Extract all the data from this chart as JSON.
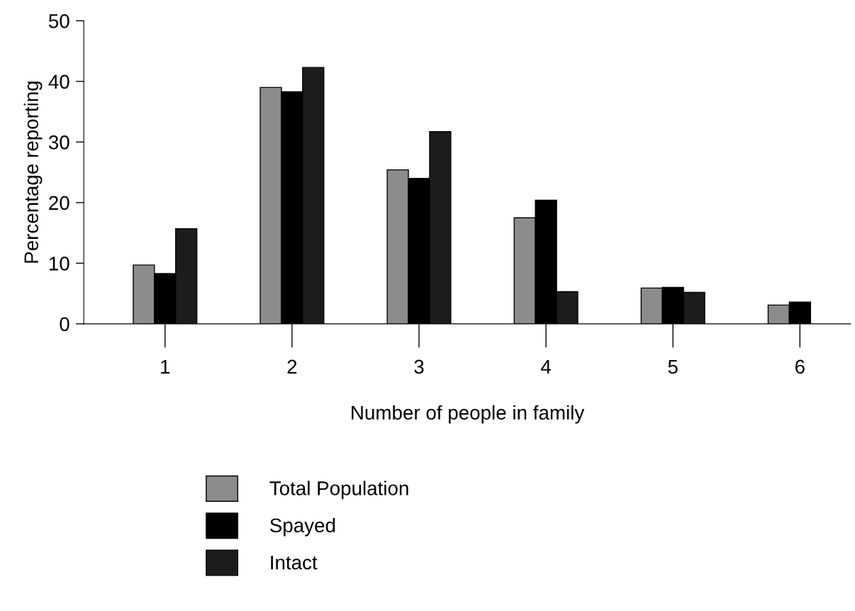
{
  "chart_data": {
    "type": "bar",
    "xlabel": "Number of people in family",
    "ylabel": "Percentage reporting",
    "categories": [
      "1",
      "2",
      "3",
      "4",
      "5",
      "6"
    ],
    "series": [
      {
        "name": "Total Population",
        "color": "#8c8c8c",
        "values": [
          9.7,
          39.0,
          25.4,
          17.5,
          5.9,
          3.1
        ]
      },
      {
        "name": "Spayed",
        "color": "#000000",
        "values": [
          8.3,
          38.3,
          24.0,
          20.4,
          6.0,
          3.6
        ]
      },
      {
        "name": "Intact",
        "color": "#1c1c1c",
        "values": [
          15.7,
          42.3,
          31.7,
          5.3,
          5.2,
          null
        ]
      }
    ],
    "ylim": [
      0,
      50
    ],
    "yticks": [
      0,
      10,
      20,
      30,
      40,
      50
    ],
    "grid": false,
    "legend": "bottom"
  }
}
